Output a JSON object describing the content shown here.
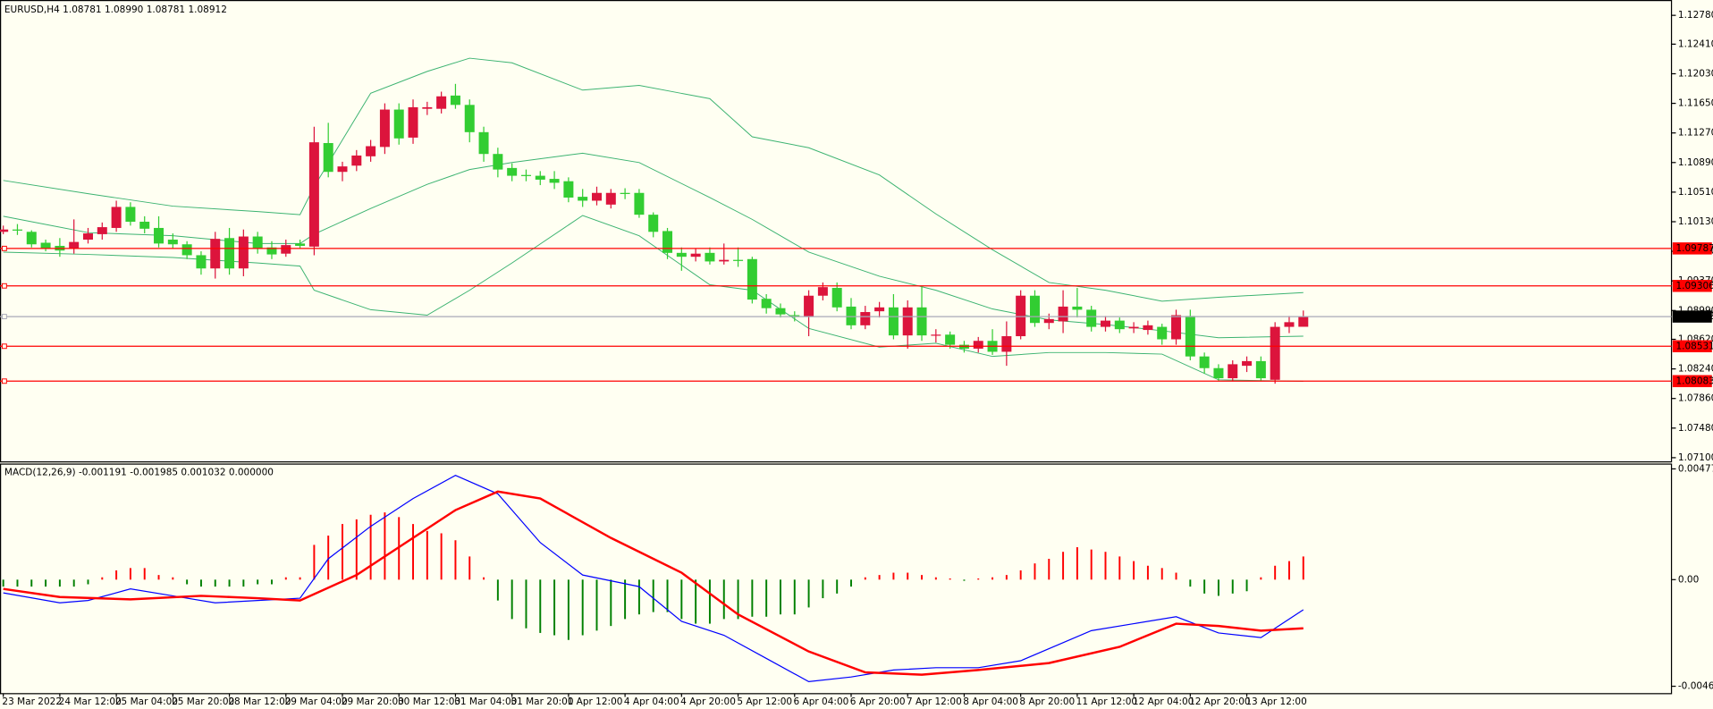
{
  "chart_data": [
    {
      "type": "candlestick",
      "title": "EURUSD,H4  1.08781 1.08990 1.08781 1.08912",
      "categories": [
        "23 Mar 2022",
        null,
        null,
        null,
        "24 Mar 12:00",
        null,
        null,
        null,
        "25 Mar 04:00",
        null,
        null,
        null,
        "25 Mar 20:00",
        null,
        null,
        null,
        "28 Mar 12:00",
        null,
        null,
        null,
        "29 Mar 04:00",
        null,
        null,
        null,
        "29 Mar 20:00",
        null,
        null,
        null,
        "30 Mar 12:00",
        null,
        null,
        null,
        "31 Mar 04:00",
        null,
        null,
        null,
        "31 Mar 20:00",
        null,
        null,
        null,
        "1 Apr 12:00",
        null,
        null,
        null,
        "4 Apr 04:00",
        null,
        null,
        null,
        "4 Apr 20:00",
        null,
        null,
        null,
        "5 Apr 12:00",
        null,
        null,
        null,
        "6 Apr 04:00",
        null,
        null,
        null,
        "6 Apr 20:00",
        null,
        null,
        null,
        "7 Apr 12:00",
        null,
        null,
        null,
        "8 Apr 04:00",
        null,
        null,
        null,
        "8 Apr 20:00",
        null,
        null,
        null,
        "11 Apr 12:00",
        null,
        null,
        null,
        "12 Apr 04:00",
        null,
        null,
        null,
        "12 Apr 20:00",
        null,
        null,
        null,
        "13 Apr 12:00",
        null,
        null,
        null,
        null
      ],
      "open": [
        1.1,
        1.1003,
        1.1,
        1.0986,
        1.0982,
        1.0978,
        1.099,
        1.0997,
        1.1005,
        1.1032,
        1.1013,
        1.1005,
        1.099,
        1.0984,
        1.097,
        1.0953,
        1.0992,
        1.0953,
        1.0994,
        1.098,
        1.0972,
        1.0985,
        1.0981,
        1.1114,
        1.1077,
        1.1085,
        1.1097,
        1.1109,
        1.1157,
        1.1121,
        1.1158,
        1.1158,
        1.1175,
        1.1163,
        1.1128,
        1.11,
        1.1082,
        1.1073,
        1.1072,
        1.1068,
        1.1065,
        1.1045,
        1.104,
        1.1035,
        1.105,
        1.105,
        1.1022,
        1.1001,
        1.0973,
        1.0968,
        1.0973,
        1.0962,
        1.0964,
        1.0965,
        1.0914,
        1.0902,
        1.0893,
        1.0891,
        1.0918,
        1.0928,
        1.0904,
        1.088,
        1.0898,
        1.0903,
        1.0867,
        1.0903,
        1.0867,
        1.0868,
        1.0855,
        1.085,
        1.086,
        1.0846,
        1.0866,
        1.0918,
        1.0883,
        1.0885,
        1.0904,
        1.09,
        1.0878,
        1.0886,
        1.0876,
        1.0874,
        1.0878,
        1.0862,
        1.0892,
        1.084,
        1.0825,
        1.0812,
        1.0828,
        1.0834,
        1.081,
        1.0878,
        1.08781
      ],
      "high": [
        1.1008,
        1.101,
        1.1002,
        1.099,
        1.0992,
        1.1016,
        1.1005,
        1.1012,
        1.104,
        1.1038,
        1.102,
        1.102,
        1.0998,
        1.0988,
        1.0975,
        1.1,
        1.1005,
        1.1003,
        1.1,
        1.0988,
        1.099,
        1.099,
        1.1135,
        1.114,
        1.109,
        1.1105,
        1.1118,
        1.1165,
        1.1165,
        1.117,
        1.1167,
        1.118,
        1.119,
        1.117,
        1.1135,
        1.1108,
        1.1088,
        1.108,
        1.1078,
        1.1078,
        1.107,
        1.1055,
        1.1058,
        1.1055,
        1.1056,
        1.1055,
        1.1025,
        1.1005,
        1.098,
        1.0978,
        1.098,
        1.0985,
        1.098,
        1.0968,
        1.092,
        1.0908,
        1.0898,
        1.0925,
        1.0935,
        1.0935,
        1.0915,
        1.0905,
        1.091,
        1.092,
        1.0912,
        1.093,
        1.0875,
        1.0872,
        1.086,
        1.0865,
        1.0875,
        1.0885,
        1.0925,
        1.0925,
        1.0895,
        1.0925,
        1.0928,
        1.0905,
        1.0892,
        1.089,
        1.0884,
        1.0886,
        1.0882,
        1.09,
        1.09,
        1.0845,
        1.083,
        1.0835,
        1.084,
        1.084,
        1.0884,
        1.0892,
        1.0899
      ],
      "low": [
        1.0997,
        1.0996,
        1.098,
        1.0975,
        1.0968,
        1.0972,
        1.0985,
        1.099,
        1.1,
        1.1008,
        1.0998,
        1.098,
        1.0978,
        1.0965,
        1.0945,
        1.094,
        1.0945,
        1.0943,
        1.0972,
        1.0965,
        1.0968,
        1.0978,
        1.097,
        1.107,
        1.1065,
        1.1078,
        1.109,
        1.11,
        1.1112,
        1.1113,
        1.115,
        1.1152,
        1.1158,
        1.1115,
        1.109,
        1.107,
        1.1065,
        1.1065,
        1.106,
        1.1055,
        1.1038,
        1.1032,
        1.1034,
        1.103,
        1.1042,
        1.1018,
        1.0993,
        1.0965,
        1.095,
        1.0962,
        1.0958,
        1.0958,
        1.0955,
        1.0908,
        1.0895,
        1.089,
        1.0885,
        1.0866,
        1.0912,
        1.0898,
        1.0875,
        1.0875,
        1.089,
        1.0862,
        1.085,
        1.086,
        1.0858,
        1.085,
        1.0845,
        1.0845,
        1.0842,
        1.0828,
        1.0862,
        1.0878,
        1.0875,
        1.087,
        1.089,
        1.0872,
        1.0872,
        1.087,
        1.087,
        1.0868,
        1.0855,
        1.0855,
        1.0835,
        1.0818,
        1.0808,
        1.0808,
        1.082,
        1.0808,
        1.0805,
        1.087,
        1.08781
      ],
      "close": [
        1.1003,
        1.1002,
        1.0984,
        1.0978,
        1.0976,
        1.0987,
        1.0998,
        1.1006,
        1.1032,
        1.1013,
        1.1004,
        1.0985,
        1.0984,
        1.097,
        1.0953,
        1.0991,
        1.0953,
        1.0994,
        1.0978,
        1.0971,
        1.0983,
        1.0982,
        1.1115,
        1.1077,
        1.1084,
        1.1098,
        1.111,
        1.1157,
        1.112,
        1.116,
        1.116,
        1.1174,
        1.1163,
        1.1128,
        1.11,
        1.108,
        1.1072,
        1.1073,
        1.1067,
        1.1063,
        1.1044,
        1.104,
        1.105,
        1.105,
        1.1049,
        1.1022,
        1.1,
        1.0973,
        1.0968,
        1.0972,
        1.0962,
        1.0964,
        1.0963,
        1.0913,
        1.0902,
        1.0894,
        1.0891,
        1.0918,
        1.0929,
        1.0903,
        1.088,
        1.0897,
        1.0903,
        1.0867,
        1.0903,
        1.0867,
        1.0868,
        1.0855,
        1.085,
        1.086,
        1.0846,
        1.0866,
        1.0918,
        1.0883,
        1.0888,
        1.0904,
        1.09,
        1.0878,
        1.0886,
        1.0875,
        1.0878,
        1.088,
        1.0862,
        1.0893,
        1.084,
        1.0825,
        1.0812,
        1.083,
        1.0834,
        1.0812,
        1.0878,
        1.0884,
        1.08912
      ],
      "up_color": "#dc143c",
      "down_color": "#32cd32",
      "bands": {
        "color": "#3cb371",
        "x": [
          0,
          6,
          12,
          18,
          21,
          22,
          26,
          30,
          33,
          36,
          41,
          45,
          50,
          53,
          57,
          62,
          66,
          70,
          74,
          78,
          82,
          86,
          92
        ],
        "upper": [
          1.1066,
          1.1049,
          1.1033,
          1.1026,
          1.1022,
          1.1058,
          1.1178,
          1.1206,
          1.1223,
          1.1217,
          1.1182,
          1.1188,
          1.1171,
          1.1122,
          1.1108,
          1.1073,
          1.1023,
          1.0977,
          1.0935,
          1.0925,
          1.0911,
          1.0916,
          1.0922
        ],
        "middle": [
          1.102,
          1.0999,
          1.0995,
          1.0985,
          1.0985,
          1.0997,
          1.103,
          1.1061,
          1.108,
          1.1089,
          1.1101,
          1.1089,
          1.1044,
          1.1016,
          1.0974,
          1.0943,
          1.0925,
          1.0901,
          1.0887,
          1.0881,
          1.0873,
          1.0864,
          1.0866
        ],
        "lower": [
          1.0974,
          1.0971,
          1.0967,
          1.096,
          1.0956,
          1.0925,
          1.09,
          1.0893,
          1.0925,
          1.096,
          1.1021,
          1.0995,
          1.0932,
          1.0925,
          1.0876,
          1.0852,
          1.0857,
          1.084,
          1.0845,
          1.0845,
          1.0843,
          1.081,
          1.0808
        ]
      },
      "levels": [
        {
          "value": 1.09787,
          "color": "#ff0000",
          "label_color": "#ff0000"
        },
        {
          "value": 1.09306,
          "color": "#ff0000",
          "label_color": "#ff0000"
        },
        {
          "value": 1.08912,
          "color": "#a8a8b8",
          "label_color": "#000000"
        },
        {
          "value": 1.08531,
          "color": "#ff0000",
          "label_color": "#ff0000"
        },
        {
          "value": 1.08083,
          "color": "#ff0000",
          "label_color": "#ff0000"
        }
      ],
      "ylim": [
        1.07053,
        1.12977
      ],
      "yticks": [
        {
          "value": 1.1278,
          "label": "1.12780"
        },
        {
          "value": 1.1241,
          "label": "1.12410"
        },
        {
          "value": 1.1203,
          "label": "1.12030"
        },
        {
          "value": 1.1165,
          "label": "1.11650"
        },
        {
          "value": 1.1127,
          "label": "1.11270"
        },
        {
          "value": 1.1089,
          "label": "1.10890"
        },
        {
          "value": 1.1051,
          "label": "1.10510"
        },
        {
          "value": 1.1013,
          "label": "1.10130"
        },
        {
          "value": 1.0975,
          "label": "1.09750"
        },
        {
          "value": 1.0937,
          "label": "1.09370"
        },
        {
          "value": 1.0899,
          "label": "1.08990"
        },
        {
          "value": 1.0862,
          "label": "1.08620"
        },
        {
          "value": 1.0824,
          "label": "1.08240"
        },
        {
          "value": 1.0786,
          "label": "1.07860"
        },
        {
          "value": 1.0748,
          "label": "1.07480"
        },
        {
          "value": 1.071,
          "label": "1.07100"
        }
      ]
    },
    {
      "type": "macd",
      "title": "MACD(12,26,9) -0.001191 -0.001985 0.001032 0.000000",
      "histogram": [
        -0.0003,
        -0.0003,
        -0.0003,
        -0.0003,
        -0.0003,
        -0.0003,
        -0.0002,
        0.0001,
        0.0004,
        0.0005,
        0.0005,
        0.0002,
        0.0001,
        -0.0002,
        -0.0003,
        -0.0003,
        -0.0003,
        -0.0003,
        -0.0002,
        -0.0002,
        0.0001,
        0.0001,
        0.0015,
        0.0019,
        0.0024,
        0.0026,
        0.0028,
        0.0029,
        0.0027,
        0.0024,
        0.0021,
        0.002,
        0.0017,
        0.001,
        0.0001,
        -0.0009,
        -0.0017,
        -0.0021,
        -0.0023,
        -0.0024,
        -0.0026,
        -0.0024,
        -0.0022,
        -0.002,
        -0.0017,
        -0.0015,
        -0.0014,
        -0.0014,
        -0.0017,
        -0.0019,
        -0.0019,
        -0.0017,
        -0.0017,
        -0.0016,
        -0.0016,
        -0.0015,
        -0.0015,
        -0.0012,
        -0.0008,
        -0.0006,
        -0.0003,
        0.0001,
        0.0002,
        0.0003,
        0.0003,
        0.0002,
        0.0001,
        5e-05,
        -5e-05,
        5e-05,
        0.0001,
        0.0002,
        0.0004,
        0.0007,
        0.0009,
        0.0012,
        0.0014,
        0.0013,
        0.0012,
        0.001,
        0.0008,
        0.0006,
        0.0005,
        0.0003,
        -0.0003,
        -0.0006,
        -0.0007,
        -0.0006,
        -0.0005,
        0.0001,
        0.0006,
        0.0008,
        0.001
      ],
      "positive_color": "#ff0000",
      "negative_color": "#008000",
      "main": {
        "color": "#0000ff",
        "x": [
          0,
          4,
          6,
          9,
          12,
          15,
          18,
          21,
          23,
          26,
          29,
          32,
          35,
          38,
          41,
          45,
          48,
          51,
          54,
          57,
          60,
          63,
          66,
          69,
          72,
          77,
          80,
          83,
          86,
          89,
          92
        ],
        "values": [
          -0.00057,
          -0.001,
          -0.0009,
          -0.0004,
          -0.0007,
          -0.001,
          -0.0009,
          -0.0008,
          0.0009,
          0.0023,
          0.0035,
          0.0045,
          0.0037,
          0.0016,
          0.0002,
          -0.0003,
          -0.0018,
          -0.0024,
          -0.0034,
          -0.0044,
          -0.0042,
          -0.0039,
          -0.0038,
          -0.0038,
          -0.0035,
          -0.0022,
          -0.0019,
          -0.0016,
          -0.0023,
          -0.0025,
          -0.0013
        ]
      },
      "signal": {
        "color": "#ff0000",
        "x": [
          0,
          4,
          9,
          14,
          18,
          21,
          25,
          28,
          32,
          35,
          38,
          43,
          48,
          52,
          57,
          61,
          65,
          69,
          74,
          79,
          83,
          86,
          89,
          92
        ],
        "values": [
          -0.0004,
          -0.00075,
          -0.00085,
          -0.0007,
          -0.0008,
          -0.0009,
          0.0002,
          0.0014,
          0.003,
          0.0038,
          0.0035,
          0.0018,
          0.0003,
          -0.0015,
          -0.0031,
          -0.004,
          -0.0041,
          -0.0039,
          -0.0036,
          -0.0029,
          -0.0019,
          -0.002,
          -0.0022,
          -0.0021
        ]
      },
      "ylim": [
        -0.00492,
        0.00501
      ],
      "yticks": [
        0.004779,
        {
          "value": 0,
          "label": "0.00"
        },
        -0.004601
      ]
    }
  ]
}
